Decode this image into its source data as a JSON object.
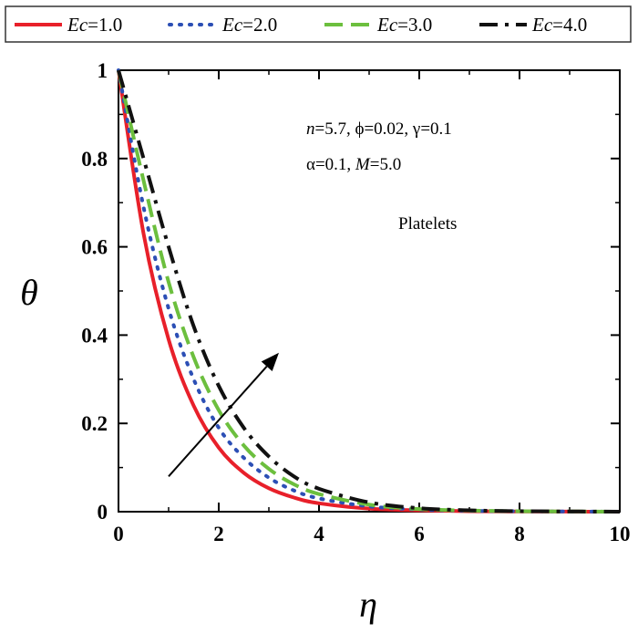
{
  "chart_data": {
    "type": "line",
    "xlabel": "η",
    "ylabel": "θ",
    "xlim": [
      0,
      10
    ],
    "ylim": [
      0,
      1
    ],
    "x_ticks": [
      "0",
      "2",
      "4",
      "6",
      "8",
      "10"
    ],
    "y_ticks": [
      "0",
      "0.2",
      "0.4",
      "0.6",
      "0.8",
      "1"
    ],
    "grid": false,
    "legend_position": "top",
    "series": [
      {
        "name_prefix": "Ec",
        "name_value": "=1.0",
        "color": "#e8202a",
        "dash": "solid",
        "x": [
          0,
          0.5,
          1,
          1.5,
          2,
          2.5,
          3,
          3.5,
          4,
          5,
          6,
          7,
          8,
          9,
          10
        ],
        "y": [
          1.0,
          0.63,
          0.39,
          0.24,
          0.145,
          0.088,
          0.053,
          0.032,
          0.019,
          0.007,
          0.003,
          0.001,
          0.0005,
          0.0002,
          0.0
        ]
      },
      {
        "name_prefix": "Ec",
        "name_value": "=2.0",
        "color": "#2c4fb5",
        "dash": "dotted",
        "x": [
          0,
          0.5,
          1,
          1.5,
          2,
          2.5,
          3,
          3.5,
          4,
          5,
          6,
          7,
          8,
          9,
          10
        ],
        "y": [
          1.0,
          0.69,
          0.46,
          0.3,
          0.19,
          0.122,
          0.077,
          0.048,
          0.03,
          0.012,
          0.005,
          0.002,
          0.001,
          0.0004,
          0.0
        ]
      },
      {
        "name_prefix": "Ec",
        "name_value": "=3.0",
        "color": "#6cbf3e",
        "dash": "dashed",
        "x": [
          0,
          0.5,
          1,
          1.5,
          2,
          2.5,
          3,
          3.5,
          4,
          5,
          6,
          7,
          8,
          9,
          10
        ],
        "y": [
          1.0,
          0.75,
          0.52,
          0.35,
          0.23,
          0.15,
          0.097,
          0.062,
          0.04,
          0.016,
          0.006,
          0.0025,
          0.001,
          0.0005,
          0.0
        ]
      },
      {
        "name_prefix": "Ec",
        "name_value": "=4.0",
        "color": "#111111",
        "dash": "dashdot",
        "x": [
          0,
          0.5,
          1,
          1.5,
          2,
          2.5,
          3,
          3.5,
          4,
          5,
          6,
          7,
          8,
          9,
          10
        ],
        "y": [
          1.0,
          0.8,
          0.6,
          0.42,
          0.285,
          0.19,
          0.125,
          0.08,
          0.052,
          0.021,
          0.008,
          0.003,
          0.0012,
          0.0005,
          0.0
        ]
      }
    ],
    "annotations": {
      "params_line1": "n=5.7, ϕ=0.02, γ=0.1",
      "params_line2": "α=0.1, M=5.0",
      "label": "Platelets",
      "arrow_from": [
        1,
        0.08
      ],
      "arrow_to": [
        3.2,
        0.36
      ]
    }
  }
}
